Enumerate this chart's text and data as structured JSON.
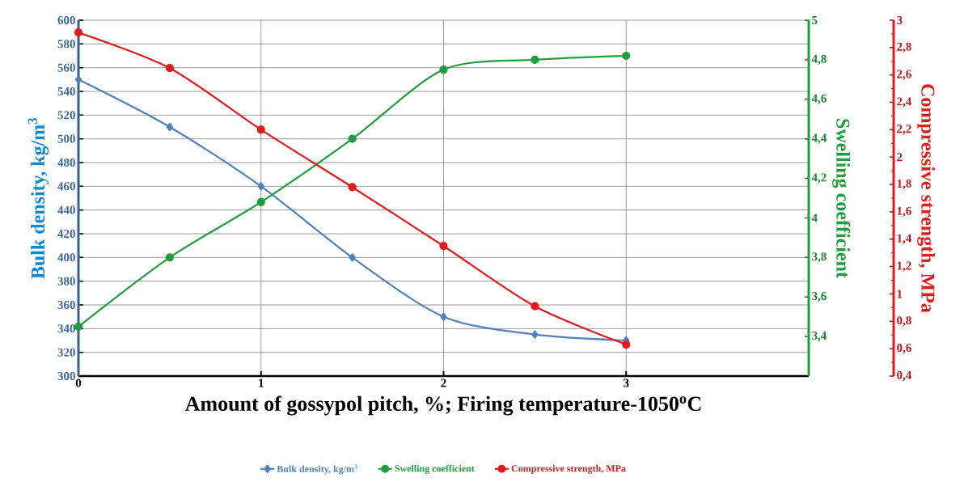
{
  "chart_data": {
    "type": "line",
    "xlabel": "Amount of gossypol pitch, %; Firing temperature-1050$^{o}$C",
    "ylabel": "Bulk density, kg/m$^{3}$",
    "y2label": "Swelling coefficient",
    "y3label": "Compressive strength, MPa",
    "x": [
      0,
      0.5,
      1,
      1.5,
      2,
      2.5,
      3
    ],
    "xlim": [
      0,
      4
    ],
    "xticks": [
      0,
      1,
      2,
      3
    ],
    "ylim": [
      300,
      600
    ],
    "yticks": [
      300,
      320,
      340,
      360,
      380,
      400,
      420,
      440,
      460,
      480,
      500,
      520,
      540,
      560,
      580,
      600
    ],
    "y2lim": [
      3.2,
      5
    ],
    "y2ticks": [
      {
        "value": 3.4,
        "label": "3,4"
      },
      {
        "value": 3.6,
        "label": "3,6"
      },
      {
        "value": 3.8,
        "label": "3,8"
      },
      4,
      {
        "value": 4.2,
        "label": "4,2"
      },
      {
        "value": 4.4,
        "label": "4,4"
      },
      {
        "value": 4.6,
        "label": "4,6"
      },
      {
        "value": 4.8,
        "label": "4,8"
      },
      5
    ],
    "y3lim": [
      0.4,
      3
    ],
    "y3ticks": [
      {
        "value": 0.4,
        "label": "0,4"
      },
      {
        "value": 0.6,
        "label": "0,6"
      },
      {
        "value": 0.8,
        "label": "0,8"
      },
      1,
      {
        "value": 1.2,
        "label": "1,2"
      },
      {
        "value": 1.4,
        "label": "1,4"
      },
      {
        "value": 1.6,
        "label": "1,6"
      },
      {
        "value": 1.8,
        "label": "1,8"
      },
      2,
      {
        "value": 2.2,
        "label": "2,2"
      },
      {
        "value": 2.4,
        "label": "2,4"
      },
      {
        "value": 2.6,
        "label": "2,6"
      },
      {
        "value": 2.8,
        "label": "2,8"
      },
      3
    ],
    "grid": true,
    "legend": "bottom",
    "line_style": "solid",
    "series": [
      {
        "name": "Bulk density, kg/m$^{3}$",
        "color": "#4f81bd",
        "marker": "diamond",
        "axis": "y",
        "values": [
          550,
          510,
          460,
          400,
          350,
          335,
          330
        ]
      },
      {
        "name": "Swelling coefficient",
        "color": "#1f9e3c",
        "marker": "circle",
        "axis": "y2",
        "values": [
          3.45,
          3.8,
          4.08,
          4.4,
          4.75,
          4.8,
          4.82
        ]
      },
      {
        "name": "Compressive strength, MPa",
        "color": "#e31a1c",
        "marker": "circle",
        "axis": "y3",
        "values": [
          2.91,
          2.65,
          2.2,
          1.78,
          1.35,
          0.91,
          0.63
        ]
      }
    ]
  }
}
